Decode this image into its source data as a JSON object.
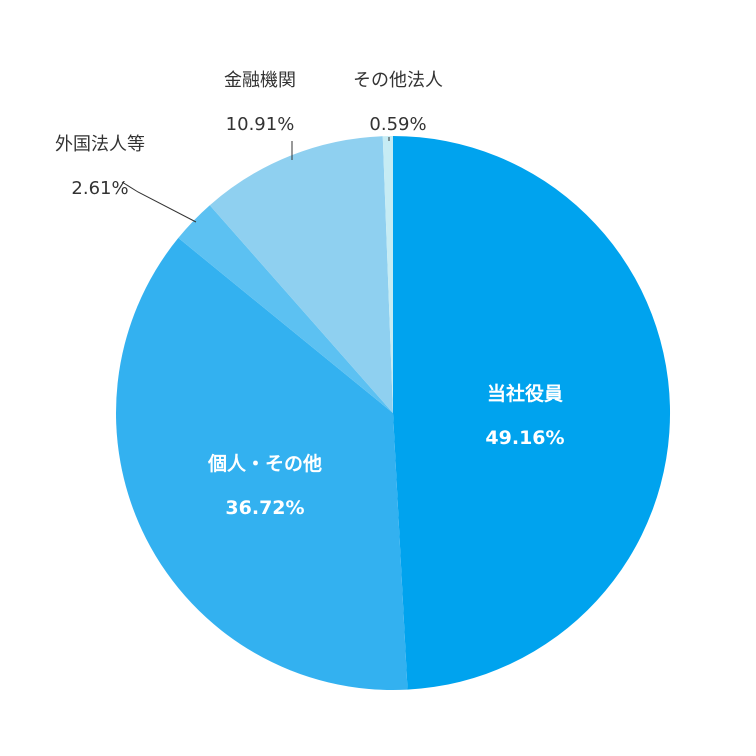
{
  "chart_data": {
    "type": "pie",
    "start_angle": "12 o'clock",
    "direction": "clockwise",
    "slices": [
      {
        "label": "当社役員",
        "value_text": "49.16%",
        "value": 49.16,
        "color": "#00a3ee"
      },
      {
        "label": "個人・その他",
        "value_text": "36.72%",
        "value": 36.72,
        "color": "#33b1f0"
      },
      {
        "label": "外国法人等",
        "value_text": "2.61%",
        "value": 2.61,
        "color": "#5cc1f2"
      },
      {
        "label": "金融機関",
        "value_text": "10.91%",
        "value": 10.91,
        "color": "#8fd0f0"
      },
      {
        "label": "その他法人",
        "value_text": "0.59%",
        "value": 0.59,
        "color": "#c6ecf4"
      }
    ]
  }
}
